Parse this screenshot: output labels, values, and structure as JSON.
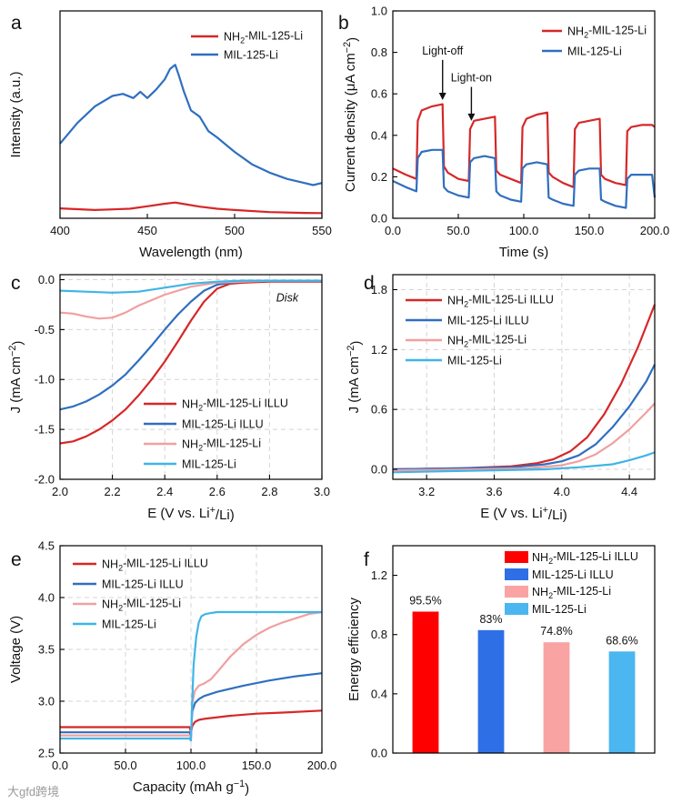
{
  "watermark": "大gfd跨境",
  "chart_data": [
    {
      "id": "a",
      "panel_label": "a",
      "type": "line",
      "xlabel": "Wavelength (nm)",
      "ylabel": "Intensity (a.u.)",
      "xlim": [
        400,
        550
      ],
      "ylim": [
        0,
        1
      ],
      "xticks": [
        400,
        450,
        500,
        550
      ],
      "yticks": [],
      "legend_position": "top-right",
      "series": [
        {
          "name_parts": [
            "NH",
            "2",
            "-MIL-125-Li"
          ],
          "color": "#d62728",
          "x": [
            400,
            420,
            440,
            450,
            460,
            466,
            470,
            480,
            490,
            500,
            520,
            540,
            550
          ],
          "y": [
            0.048,
            0.04,
            0.046,
            0.058,
            0.07,
            0.076,
            0.07,
            0.056,
            0.046,
            0.04,
            0.03,
            0.026,
            0.025
          ]
        },
        {
          "name_parts": [
            "MIL-125-Li"
          ],
          "color": "#2f6fbf",
          "x": [
            400,
            410,
            420,
            430,
            436,
            442,
            446,
            450,
            455,
            460,
            463,
            466,
            468,
            471,
            475,
            480,
            485,
            490,
            500,
            510,
            520,
            530,
            540,
            545,
            550
          ],
          "y": [
            0.36,
            0.46,
            0.54,
            0.59,
            0.6,
            0.58,
            0.61,
            0.58,
            0.62,
            0.67,
            0.72,
            0.74,
            0.69,
            0.61,
            0.52,
            0.49,
            0.42,
            0.39,
            0.32,
            0.26,
            0.22,
            0.19,
            0.17,
            0.16,
            0.17
          ]
        }
      ]
    },
    {
      "id": "b",
      "panel_label": "b",
      "type": "line",
      "xlabel": "Time (s)",
      "ylabel_parts": [
        "Current density (μA cm",
        "−2",
        ")"
      ],
      "xlim": [
        0,
        200
      ],
      "ylim": [
        0,
        1.0
      ],
      "xticks": [
        0,
        50,
        100,
        150,
        200
      ],
      "yticks": [
        0.0,
        0.2,
        0.4,
        0.6,
        0.8,
        1.0
      ],
      "tick_decimals": 1,
      "legend_position": "top-right",
      "annotations": [
        {
          "text": "Light-off",
          "x": 38,
          "y": 0.79,
          "arrow_to": [
            38,
            0.57
          ]
        },
        {
          "text": "Light-on",
          "x": 60,
          "y": 0.66,
          "arrow_to": [
            60,
            0.47
          ]
        }
      ],
      "series": [
        {
          "name_parts": [
            "NH",
            "2",
            "-MIL-125-Li"
          ],
          "color": "#d62728",
          "x": [
            0,
            10,
            18,
            19,
            22,
            30,
            38,
            39,
            42,
            50,
            58,
            59,
            62,
            70,
            78,
            79,
            82,
            90,
            98,
            99,
            102,
            110,
            118,
            119,
            122,
            130,
            138,
            139,
            142,
            150,
            158,
            159,
            162,
            170,
            178,
            179,
            182,
            190,
            198,
            200
          ],
          "y": [
            0.24,
            0.21,
            0.19,
            0.47,
            0.52,
            0.54,
            0.55,
            0.25,
            0.22,
            0.19,
            0.18,
            0.43,
            0.47,
            0.48,
            0.49,
            0.23,
            0.21,
            0.19,
            0.17,
            0.44,
            0.48,
            0.5,
            0.51,
            0.22,
            0.2,
            0.17,
            0.15,
            0.43,
            0.46,
            0.47,
            0.48,
            0.21,
            0.19,
            0.17,
            0.16,
            0.42,
            0.44,
            0.45,
            0.45,
            0.44
          ]
        },
        {
          "name_parts": [
            "MIL-125-Li"
          ],
          "color": "#2f6fbf",
          "x": [
            0,
            10,
            18,
            19,
            22,
            30,
            38,
            39,
            42,
            50,
            58,
            59,
            62,
            70,
            78,
            79,
            82,
            90,
            98,
            99,
            102,
            110,
            118,
            119,
            122,
            130,
            138,
            139,
            142,
            150,
            158,
            159,
            162,
            170,
            178,
            179,
            182,
            190,
            198,
            200
          ],
          "y": [
            0.18,
            0.15,
            0.13,
            0.29,
            0.32,
            0.33,
            0.33,
            0.15,
            0.13,
            0.11,
            0.1,
            0.27,
            0.29,
            0.3,
            0.29,
            0.13,
            0.11,
            0.09,
            0.08,
            0.24,
            0.26,
            0.27,
            0.26,
            0.1,
            0.09,
            0.07,
            0.06,
            0.21,
            0.23,
            0.24,
            0.24,
            0.09,
            0.08,
            0.06,
            0.05,
            0.19,
            0.21,
            0.21,
            0.21,
            0.1
          ]
        }
      ]
    },
    {
      "id": "c",
      "panel_label": "c",
      "type": "line",
      "xlabel_parts": [
        "E (V vs. Li",
        "+",
        "/Li)"
      ],
      "ylabel_parts": [
        "J (mA cm",
        "−2",
        ")"
      ],
      "xlim": [
        2.0,
        3.0
      ],
      "ylim": [
        -2.0,
        0.05
      ],
      "xticks": [
        2.0,
        2.2,
        2.4,
        2.6,
        2.8,
        3.0
      ],
      "yticks": [
        -2.0,
        -1.5,
        -1.0,
        -0.5,
        0.0
      ],
      "tick_decimals": 1,
      "grid": true,
      "annotations": [
        {
          "text": "Disk",
          "x": 2.91,
          "y": -0.22,
          "italic": true
        }
      ],
      "legend_position": "bottom-right",
      "series": [
        {
          "name_parts": [
            "NH",
            "2",
            "-MIL-125-Li ILLU"
          ],
          "color": "#d62728",
          "x": [
            2.0,
            2.05,
            2.1,
            2.15,
            2.2,
            2.25,
            2.3,
            2.35,
            2.4,
            2.45,
            2.5,
            2.55,
            2.6,
            2.65,
            2.7,
            2.8,
            2.9,
            3.0
          ],
          "y": [
            -1.64,
            -1.62,
            -1.57,
            -1.5,
            -1.41,
            -1.3,
            -1.16,
            -1.0,
            -0.82,
            -0.62,
            -0.41,
            -0.22,
            -0.09,
            -0.04,
            -0.03,
            -0.02,
            -0.02,
            -0.02
          ]
        },
        {
          "name_parts": [
            "MIL-125-Li ILLU"
          ],
          "color": "#2f6fbf",
          "x": [
            2.0,
            2.05,
            2.1,
            2.15,
            2.2,
            2.25,
            2.3,
            2.35,
            2.4,
            2.45,
            2.5,
            2.55,
            2.6,
            2.65,
            2.7,
            2.8,
            2.9,
            3.0
          ],
          "y": [
            -1.3,
            -1.27,
            -1.22,
            -1.15,
            -1.06,
            -0.95,
            -0.81,
            -0.66,
            -0.5,
            -0.35,
            -0.22,
            -0.11,
            -0.05,
            -0.03,
            -0.02,
            -0.01,
            -0.01,
            -0.01
          ]
        },
        {
          "name_parts": [
            "NH",
            "2",
            "-MIL-125-Li"
          ],
          "color": "#f0a0a0",
          "x": [
            2.0,
            2.05,
            2.1,
            2.15,
            2.2,
            2.25,
            2.3,
            2.4,
            2.5,
            2.6,
            2.7,
            2.8,
            3.0
          ],
          "y": [
            -0.33,
            -0.34,
            -0.37,
            -0.39,
            -0.38,
            -0.33,
            -0.26,
            -0.15,
            -0.07,
            -0.03,
            -0.02,
            -0.01,
            -0.01
          ]
        },
        {
          "name_parts": [
            "MIL-125-Li"
          ],
          "color": "#3fb5e6",
          "x": [
            2.0,
            2.1,
            2.2,
            2.3,
            2.4,
            2.5,
            2.6,
            2.7,
            3.0
          ],
          "y": [
            -0.11,
            -0.12,
            -0.13,
            -0.12,
            -0.08,
            -0.04,
            -0.02,
            -0.01,
            -0.01
          ]
        }
      ]
    },
    {
      "id": "d",
      "panel_label": "d",
      "type": "line",
      "xlabel_parts": [
        "E (V vs. Li",
        "+",
        "/Li)"
      ],
      "ylabel_parts": [
        "J (mA cm",
        "−2",
        ")"
      ],
      "xlim": [
        3.0,
        4.55
      ],
      "ylim": [
        -0.1,
        1.95
      ],
      "xticks": [
        3.2,
        3.6,
        4.0,
        4.4
      ],
      "yticks": [
        0.0,
        0.6,
        1.2,
        1.8
      ],
      "tick_decimals": 1,
      "grid": true,
      "legend_position": "top-left",
      "series": [
        {
          "name_parts": [
            "NH",
            "2",
            "-MIL-125-Li ILLU"
          ],
          "color": "#d62728",
          "x": [
            3.0,
            3.4,
            3.7,
            3.85,
            3.95,
            4.05,
            4.15,
            4.25,
            4.35,
            4.45,
            4.55
          ],
          "y": [
            0.0,
            0.01,
            0.03,
            0.06,
            0.1,
            0.18,
            0.32,
            0.55,
            0.85,
            1.22,
            1.65
          ]
        },
        {
          "name_parts": [
            "MIL-125-Li ILLU"
          ],
          "color": "#2f6fbf",
          "x": [
            3.0,
            3.4,
            3.7,
            3.9,
            4.0,
            4.1,
            4.2,
            4.3,
            4.4,
            4.5,
            4.55
          ],
          "y": [
            0.0,
            0.01,
            0.02,
            0.05,
            0.08,
            0.14,
            0.25,
            0.42,
            0.63,
            0.88,
            1.05
          ]
        },
        {
          "name_parts": [
            "NH",
            "2",
            "-MIL-125-Li"
          ],
          "color": "#f0a0a0",
          "x": [
            3.0,
            3.5,
            3.8,
            4.0,
            4.1,
            4.2,
            4.3,
            4.4,
            4.5,
            4.55
          ],
          "y": [
            -0.01,
            0.0,
            0.01,
            0.04,
            0.08,
            0.15,
            0.26,
            0.4,
            0.57,
            0.66
          ]
        },
        {
          "name_parts": [
            "MIL-125-Li"
          ],
          "color": "#3fb5e6",
          "x": [
            3.0,
            3.3,
            3.6,
            3.9,
            4.1,
            4.3,
            4.4,
            4.5,
            4.55
          ],
          "y": [
            -0.03,
            -0.02,
            -0.01,
            0.0,
            0.02,
            0.05,
            0.09,
            0.14,
            0.17
          ]
        }
      ]
    },
    {
      "id": "e",
      "panel_label": "e",
      "type": "line",
      "xlabel_parts": [
        "Capacity (mAh g",
        "−1",
        ")"
      ],
      "ylabel": "Voltage (V)",
      "xlim": [
        0,
        200
      ],
      "ylim": [
        2.5,
        4.5
      ],
      "xticks": [
        0,
        50,
        100,
        150,
        200
      ],
      "yticks": [
        2.5,
        3.0,
        3.5,
        4.0,
        4.5
      ],
      "tick_decimals": 1,
      "grid": true,
      "legend_position": "top-left",
      "series": [
        {
          "name_parts": [
            "NH",
            "2",
            "-MIL-125-Li ILLU"
          ],
          "color": "#d62728",
          "x": [
            0,
            10,
            50,
            99,
            100,
            101,
            103,
            106,
            110,
            130,
            150,
            170,
            200
          ],
          "y": [
            2.75,
            2.75,
            2.75,
            2.75,
            2.7,
            2.76,
            2.8,
            2.82,
            2.83,
            2.86,
            2.88,
            2.89,
            2.91
          ]
        },
        {
          "name_parts": [
            "MIL-125-Li ILLU"
          ],
          "color": "#2f6fbf",
          "x": [
            0,
            10,
            50,
            99,
            100,
            101,
            103,
            106,
            110,
            120,
            140,
            160,
            180,
            200
          ],
          "y": [
            2.7,
            2.7,
            2.7,
            2.7,
            2.66,
            2.9,
            2.98,
            3.02,
            3.05,
            3.09,
            3.15,
            3.2,
            3.24,
            3.27
          ]
        },
        {
          "name_parts": [
            "NH",
            "2",
            "-MIL-125-Li"
          ],
          "color": "#f0a0a0",
          "x": [
            0,
            10,
            50,
            99,
            100,
            101,
            103,
            106,
            110,
            115,
            120,
            130,
            140,
            150,
            160,
            170,
            180,
            190,
            200
          ],
          "y": [
            2.67,
            2.67,
            2.67,
            2.67,
            2.65,
            2.98,
            3.1,
            3.15,
            3.17,
            3.21,
            3.28,
            3.43,
            3.55,
            3.64,
            3.71,
            3.76,
            3.8,
            3.84,
            3.86
          ]
        },
        {
          "name_parts": [
            "MIL-125-Li"
          ],
          "color": "#3fb5e6",
          "x": [
            0,
            10,
            50,
            99,
            100,
            101,
            102,
            104,
            106,
            108,
            111,
            115,
            120,
            150,
            200
          ],
          "y": [
            2.64,
            2.64,
            2.64,
            2.64,
            2.62,
            3.0,
            3.35,
            3.62,
            3.76,
            3.82,
            3.84,
            3.85,
            3.86,
            3.86,
            3.86
          ]
        }
      ]
    },
    {
      "id": "f",
      "panel_label": "f",
      "type": "bar",
      "ylabel": "Energy efficiency",
      "ylim": [
        0.0,
        1.4
      ],
      "yticks": [
        0.0,
        0.4,
        0.8,
        1.2
      ],
      "tick_decimals": 1,
      "legend_position": "top-right",
      "categories_parts": [
        [
          "NH",
          "2",
          "-MIL-125-Li ILLU"
        ],
        [
          "MIL-125-Li ILLU"
        ],
        [
          "NH",
          "2",
          "-MIL-125-Li"
        ],
        [
          "MIL-125-Li"
        ]
      ],
      "values": [
        0.955,
        0.83,
        0.748,
        0.686
      ],
      "value_labels": [
        "95.5%",
        "83%",
        "74.8%",
        "68.6%"
      ],
      "colors": [
        "#fe0000",
        "#2e6fe6",
        "#f9a3a3",
        "#4bb6f0"
      ]
    }
  ]
}
